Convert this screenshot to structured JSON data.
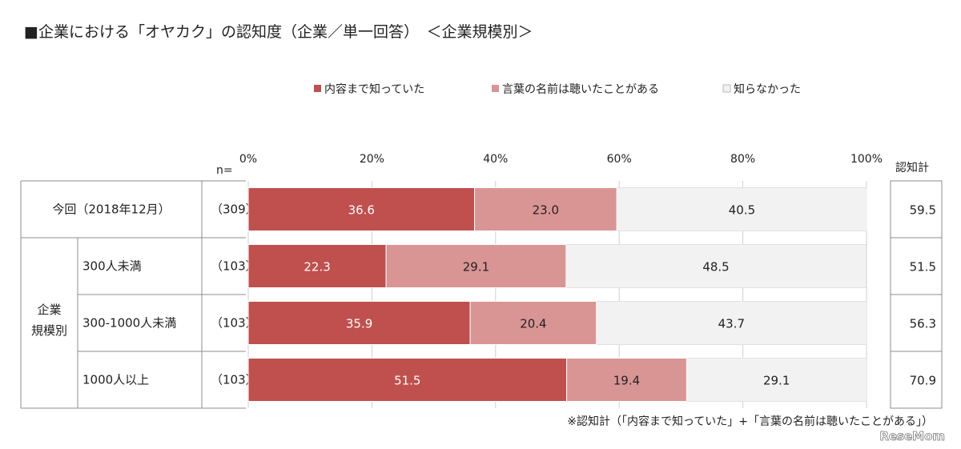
{
  "chart_data": {
    "type": "bar",
    "orientation": "horizontal",
    "stacked": true,
    "title": "■企業における「オヤカク」の認知度（企業／単一回答）　＜企業規模別＞",
    "n_label": "n=",
    "total_header": "認知計",
    "footnote": "※認知計（「内容まで知っていた」+「言葉の名前は聴いたことがある」）",
    "watermark": "ReseMom",
    "xlim": [
      0,
      100
    ],
    "x_ticks": [
      "0%",
      "20%",
      "40%",
      "60%",
      "80%",
      "100%"
    ],
    "legend_position": "top",
    "series": [
      {
        "name": "内容まで知っていた",
        "color": "#c0504d"
      },
      {
        "name": "言葉の名前は聴いたことがある",
        "color": "#d99594"
      },
      {
        "name": "知らなかった",
        "color": "#f2f2f2"
      }
    ],
    "group_label": "企業\n規模別",
    "rows": [
      {
        "label": "今回（2018年12月）",
        "n": "（309）",
        "values": [
          36.6,
          23.0,
          40.5
        ],
        "value_labels": [
          "36.6",
          "23.0",
          "40.5"
        ],
        "total": "59.5",
        "grouped": false
      },
      {
        "label": "300人未満",
        "n": "（103）",
        "values": [
          22.3,
          29.1,
          48.5
        ],
        "value_labels": [
          "22.3",
          "29.1",
          "48.5"
        ],
        "total": "51.5",
        "grouped": true
      },
      {
        "label": "300-1000人未満",
        "n": "（103）",
        "values": [
          35.9,
          20.4,
          43.7
        ],
        "value_labels": [
          "35.9",
          "20.4",
          "43.7"
        ],
        "total": "56.3",
        "grouped": true
      },
      {
        "label": "1000人以上",
        "n": "（103）",
        "values": [
          51.5,
          19.4,
          29.1
        ],
        "value_labels": [
          "51.5",
          "19.4",
          "29.1"
        ],
        "total": "70.9",
        "grouped": true
      }
    ]
  }
}
